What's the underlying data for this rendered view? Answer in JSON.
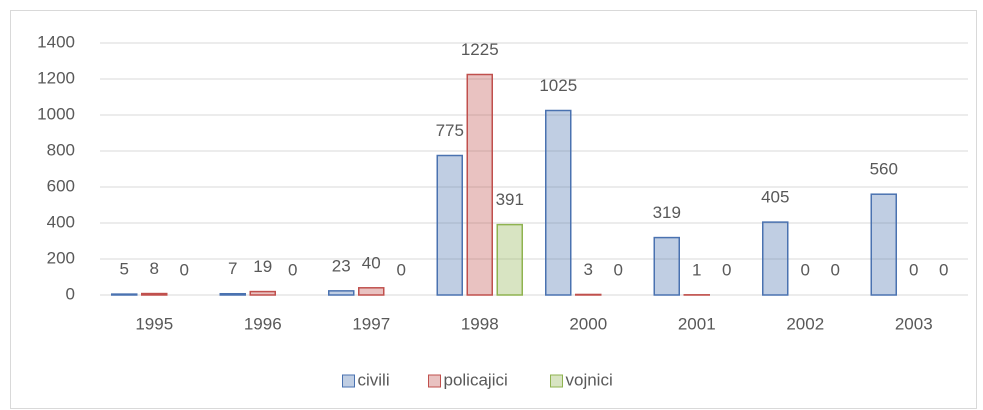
{
  "chart_data": {
    "type": "bar",
    "categories": [
      "1995",
      "1996",
      "1997",
      "1998",
      "2000",
      "2001",
      "2002",
      "2003"
    ],
    "series": [
      {
        "name": "civili",
        "color": "#4a72b0",
        "values": [
          5,
          7,
          23,
          775,
          1025,
          319,
          405,
          560
        ]
      },
      {
        "name": "policajici",
        "color": "#c0504d",
        "values": [
          8,
          19,
          40,
          1225,
          3,
          1,
          0,
          0
        ]
      },
      {
        "name": "vojnici",
        "color": "#8fb350",
        "values": [
          0,
          0,
          0,
          391,
          0,
          0,
          0,
          0
        ]
      }
    ],
    "ylim": [
      0,
      1400
    ],
    "yticks": [
      0,
      200,
      400,
      600,
      800,
      1000,
      1200,
      1400
    ],
    "grid": true,
    "legend": "bottom"
  }
}
